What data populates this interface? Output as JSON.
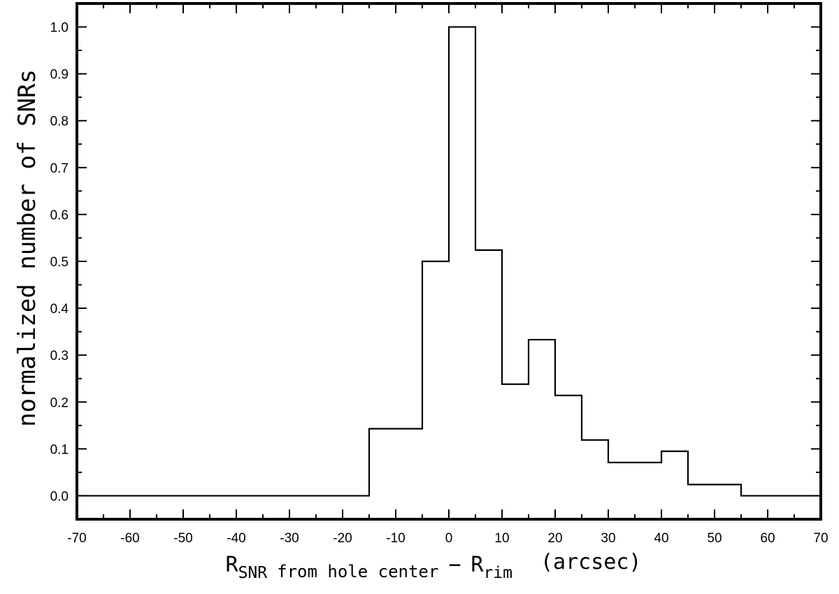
{
  "chart_data": {
    "type": "histogram",
    "bin_edges": [
      -70,
      -15,
      -5,
      0,
      5,
      10,
      15,
      20,
      25,
      30,
      40,
      45,
      55,
      70
    ],
    "values": [
      0.0,
      0.143,
      0.5,
      1.0,
      0.524,
      0.238,
      0.333,
      0.214,
      0.119,
      0.071,
      0.095,
      0.024,
      0.0
    ],
    "xlim": [
      -70,
      70
    ],
    "ylim": [
      -0.05,
      1.05
    ],
    "x_ticks": [
      -70,
      -60,
      -50,
      -40,
      -30,
      -20,
      -10,
      0,
      10,
      20,
      30,
      40,
      50,
      60,
      70
    ],
    "x_tick_labels": [
      "-70",
      "-60",
      "-50",
      "-40",
      "-30",
      "-20",
      "-10",
      "0",
      "10",
      "20",
      "30",
      "40",
      "50",
      "60",
      "70"
    ],
    "y_ticks": [
      0.0,
      0.1,
      0.2,
      0.3,
      0.4,
      0.5,
      0.6,
      0.7,
      0.8,
      0.9,
      1.0
    ],
    "y_tick_labels": [
      "0.0",
      "0.1",
      "0.2",
      "0.3",
      "0.4",
      "0.5",
      "0.6",
      "0.7",
      "0.8",
      "0.9",
      "1.0"
    ],
    "xlabel": {
      "r1": "R",
      "r1_sub": "SNR",
      "mid": "from hole center",
      "minus": "−",
      "r2": "R",
      "r2_sub": "rim",
      "units": "(arcsec)"
    },
    "ylabel": "normalized number of SNRs",
    "grid": false,
    "color": "#000000"
  }
}
